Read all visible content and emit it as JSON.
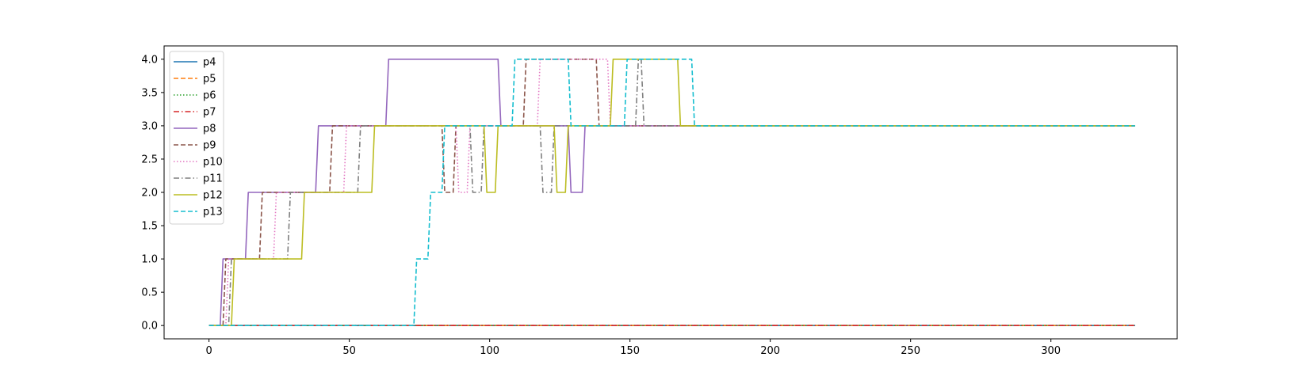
{
  "chart_data": {
    "type": "line",
    "title": "",
    "xlabel": "",
    "ylabel": "",
    "xlim": [
      -16,
      345
    ],
    "ylim": [
      -0.2,
      4.2
    ],
    "xticks": [
      0,
      50,
      100,
      150,
      200,
      250,
      300
    ],
    "yticks": [
      0.0,
      0.5,
      1.0,
      1.5,
      2.0,
      2.5,
      3.0,
      3.5,
      4.0
    ],
    "ytick_labels": [
      "0.0",
      "0.5",
      "1.0",
      "1.5",
      "2.0",
      "2.5",
      "3.0",
      "3.5",
      "4.0"
    ],
    "grid": false,
    "legend_position": "top-left",
    "series": [
      {
        "name": "p4",
        "color": "#1f77b4",
        "style": "solid",
        "points": [
          [
            0,
            0
          ],
          [
            330,
            0
          ]
        ]
      },
      {
        "name": "p5",
        "color": "#ff7f0e",
        "style": "dashed",
        "points": [
          [
            0,
            0
          ],
          [
            330,
            0
          ]
        ]
      },
      {
        "name": "p6",
        "color": "#2ca02c",
        "style": "dotted",
        "points": [
          [
            0,
            0
          ],
          [
            330,
            0
          ]
        ]
      },
      {
        "name": "p7",
        "color": "#d62728",
        "style": "dashdot",
        "points": [
          [
            0,
            0
          ],
          [
            330,
            0
          ]
        ]
      },
      {
        "name": "p8",
        "color": "#9467bd",
        "style": "solid",
        "points": [
          [
            0,
            0
          ],
          [
            4,
            0
          ],
          [
            5,
            1
          ],
          [
            13,
            1
          ],
          [
            14,
            2
          ],
          [
            38,
            2
          ],
          [
            39,
            3
          ],
          [
            63,
            3
          ],
          [
            64,
            4
          ],
          [
            103,
            4
          ],
          [
            104,
            3
          ],
          [
            128,
            3
          ],
          [
            129,
            2
          ],
          [
            133,
            2
          ],
          [
            134,
            3
          ],
          [
            330,
            3
          ]
        ]
      },
      {
        "name": "p9",
        "color": "#8c564b",
        "style": "dashed",
        "points": [
          [
            0,
            0
          ],
          [
            5,
            0
          ],
          [
            6,
            1
          ],
          [
            18,
            1
          ],
          [
            19,
            2
          ],
          [
            43,
            2
          ],
          [
            44,
            3
          ],
          [
            83,
            3
          ],
          [
            84,
            2
          ],
          [
            87,
            2
          ],
          [
            88,
            3
          ],
          [
            112,
            3
          ],
          [
            113,
            4
          ],
          [
            138,
            4
          ],
          [
            139,
            3
          ],
          [
            330,
            3
          ]
        ]
      },
      {
        "name": "p10",
        "color": "#e377c2",
        "style": "dotted",
        "points": [
          [
            0,
            0
          ],
          [
            6,
            0
          ],
          [
            7,
            1
          ],
          [
            23,
            1
          ],
          [
            24,
            2
          ],
          [
            48,
            2
          ],
          [
            49,
            3
          ],
          [
            88,
            3
          ],
          [
            89,
            2
          ],
          [
            92,
            2
          ],
          [
            93,
            3
          ],
          [
            117,
            3
          ],
          [
            118,
            4
          ],
          [
            142,
            4
          ],
          [
            143,
            3
          ],
          [
            330,
            3
          ]
        ]
      },
      {
        "name": "p11",
        "color": "#7f7f7f",
        "style": "dashdot",
        "points": [
          [
            0,
            0
          ],
          [
            7,
            0
          ],
          [
            8,
            1
          ],
          [
            28,
            1
          ],
          [
            29,
            2
          ],
          [
            53,
            2
          ],
          [
            54,
            3
          ],
          [
            93,
            3
          ],
          [
            94,
            2
          ],
          [
            97,
            2
          ],
          [
            98,
            3
          ],
          [
            118,
            3
          ],
          [
            119,
            2
          ],
          [
            122,
            2
          ],
          [
            123,
            3
          ],
          [
            152,
            3
          ],
          [
            153,
            4
          ],
          [
            154,
            4
          ],
          [
            155,
            3
          ],
          [
            330,
            3
          ]
        ]
      },
      {
        "name": "p12",
        "color": "#bcbd22",
        "style": "solid",
        "points": [
          [
            0,
            0
          ],
          [
            8,
            0
          ],
          [
            9,
            1
          ],
          [
            33,
            1
          ],
          [
            34,
            2
          ],
          [
            58,
            2
          ],
          [
            59,
            3
          ],
          [
            98,
            3
          ],
          [
            99,
            2
          ],
          [
            102,
            2
          ],
          [
            103,
            3
          ],
          [
            123,
            3
          ],
          [
            124,
            2
          ],
          [
            127,
            2
          ],
          [
            128,
            3
          ],
          [
            143,
            3
          ],
          [
            144,
            4
          ],
          [
            167,
            4
          ],
          [
            168,
            3
          ],
          [
            330,
            3
          ]
        ]
      },
      {
        "name": "p13",
        "color": "#17becf",
        "style": "dashed",
        "points": [
          [
            0,
            0
          ],
          [
            73,
            0
          ],
          [
            74,
            1
          ],
          [
            78,
            1
          ],
          [
            79,
            2
          ],
          [
            83,
            2
          ],
          [
            84,
            3
          ],
          [
            108,
            3
          ],
          [
            109,
            4
          ],
          [
            128,
            4
          ],
          [
            129,
            3
          ],
          [
            148,
            3
          ],
          [
            149,
            4
          ],
          [
            172,
            4
          ],
          [
            173,
            3
          ],
          [
            330,
            3
          ]
        ]
      }
    ]
  }
}
